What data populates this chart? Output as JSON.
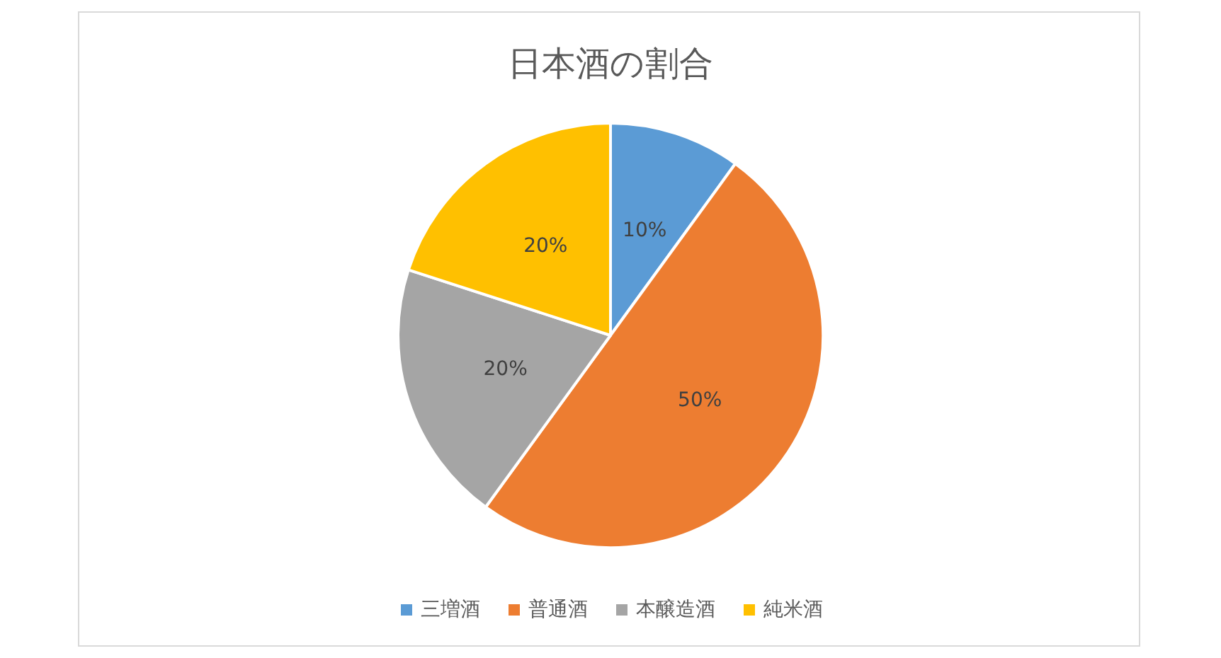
{
  "chart_data": {
    "type": "pie",
    "title": "日本酒の割合",
    "categories": [
      "三増酒",
      "普通酒",
      "本醸造酒",
      "純米酒"
    ],
    "values": [
      10,
      50,
      20,
      20
    ],
    "colors": [
      "#5b9bd5",
      "#ed7d31",
      "#a5a5a5",
      "#ffc000"
    ],
    "value_labels": [
      "10%",
      "50%",
      "20%",
      "20%"
    ],
    "legend": "bottom"
  }
}
